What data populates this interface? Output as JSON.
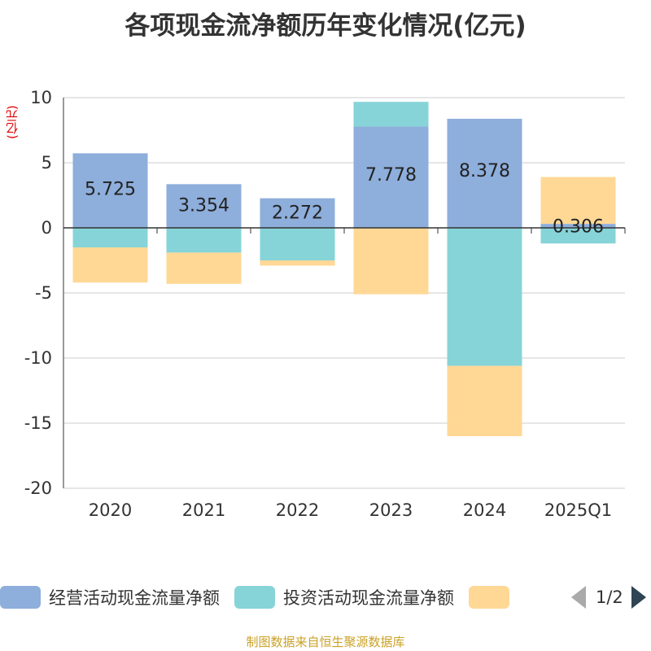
{
  "chart_data": {
    "type": "bar",
    "stacked": true,
    "title": "各项现金流净额历年变化情况(亿元)",
    "ylabel": "(亿元)",
    "categories": [
      "2020",
      "2021",
      "2022",
      "2023",
      "2024",
      "2025Q1"
    ],
    "ylim": [
      -20,
      10
    ],
    "yticks": [
      10,
      5,
      0,
      -5,
      -10,
      -15,
      -20
    ],
    "grid": true,
    "series": [
      {
        "name": "经营活动现金流量净额",
        "color": "#8eaedb",
        "values": [
          5.725,
          3.354,
          2.272,
          7.778,
          8.378,
          0.306
        ],
        "labels": [
          "5.725",
          "3.354",
          "2.272",
          "7.778",
          "8.378",
          "0.306"
        ]
      },
      {
        "name": "投资活动现金流量净额",
        "color": "#86d4d8",
        "values": [
          -1.5,
          -1.9,
          -2.5,
          1.9,
          -10.6,
          -1.2
        ]
      },
      {
        "name": "",
        "color": "#ffd896",
        "values": [
          -2.7,
          -2.4,
          -0.4,
          -5.1,
          -5.4,
          3.6
        ]
      }
    ],
    "legend": {
      "position": "bottom",
      "page": "1/2"
    }
  },
  "source": "制图数据来自恒生聚源数据库"
}
